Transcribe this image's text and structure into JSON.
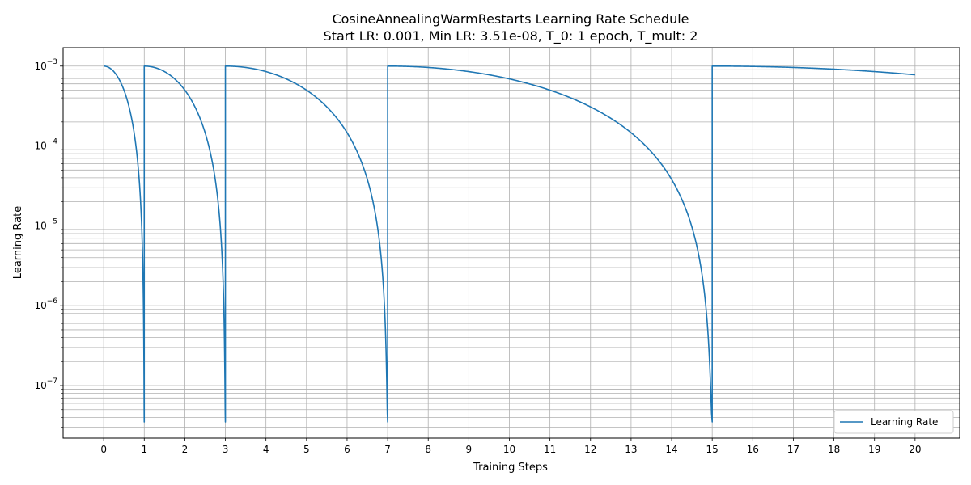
{
  "chart_data": {
    "type": "line",
    "title": "CosineAnnealingWarmRestarts Learning Rate Schedule",
    "subtitle": "Start LR: 0.001, Min LR: 3.51e-08, T_0: 1 epoch, T_mult: 2",
    "xlabel": "Training Steps",
    "ylabel": "Learning Rate",
    "xlim": [
      -1,
      21.1
    ],
    "ylim": [
      2.2e-08,
      0.0017
    ],
    "yscale": "log",
    "grid": true,
    "legend_position": "bottom-right",
    "x_ticks": [
      0,
      1,
      2,
      3,
      4,
      5,
      6,
      7,
      8,
      9,
      10,
      11,
      12,
      13,
      14,
      15,
      16,
      17,
      18,
      19,
      20
    ],
    "y_ticks": [
      {
        "value": 1e-07,
        "base": "10",
        "exp": "−7"
      },
      {
        "value": 1e-06,
        "base": "10",
        "exp": "−6"
      },
      {
        "value": 1e-05,
        "base": "10",
        "exp": "−5"
      },
      {
        "value": 0.0001,
        "base": "10",
        "exp": "−4"
      },
      {
        "value": 0.001,
        "base": "10",
        "exp": "−3"
      }
    ],
    "series": [
      {
        "name": "Learning Rate",
        "color": "#1f77b4",
        "schedule": {
          "eta_max": 0.001,
          "eta_min": 3.51e-08,
          "cycle_starts": [
            0,
            1,
            3,
            7,
            15
          ],
          "cycle_lengths": [
            1,
            2,
            4,
            8,
            16
          ],
          "x_end": 20
        }
      }
    ]
  }
}
